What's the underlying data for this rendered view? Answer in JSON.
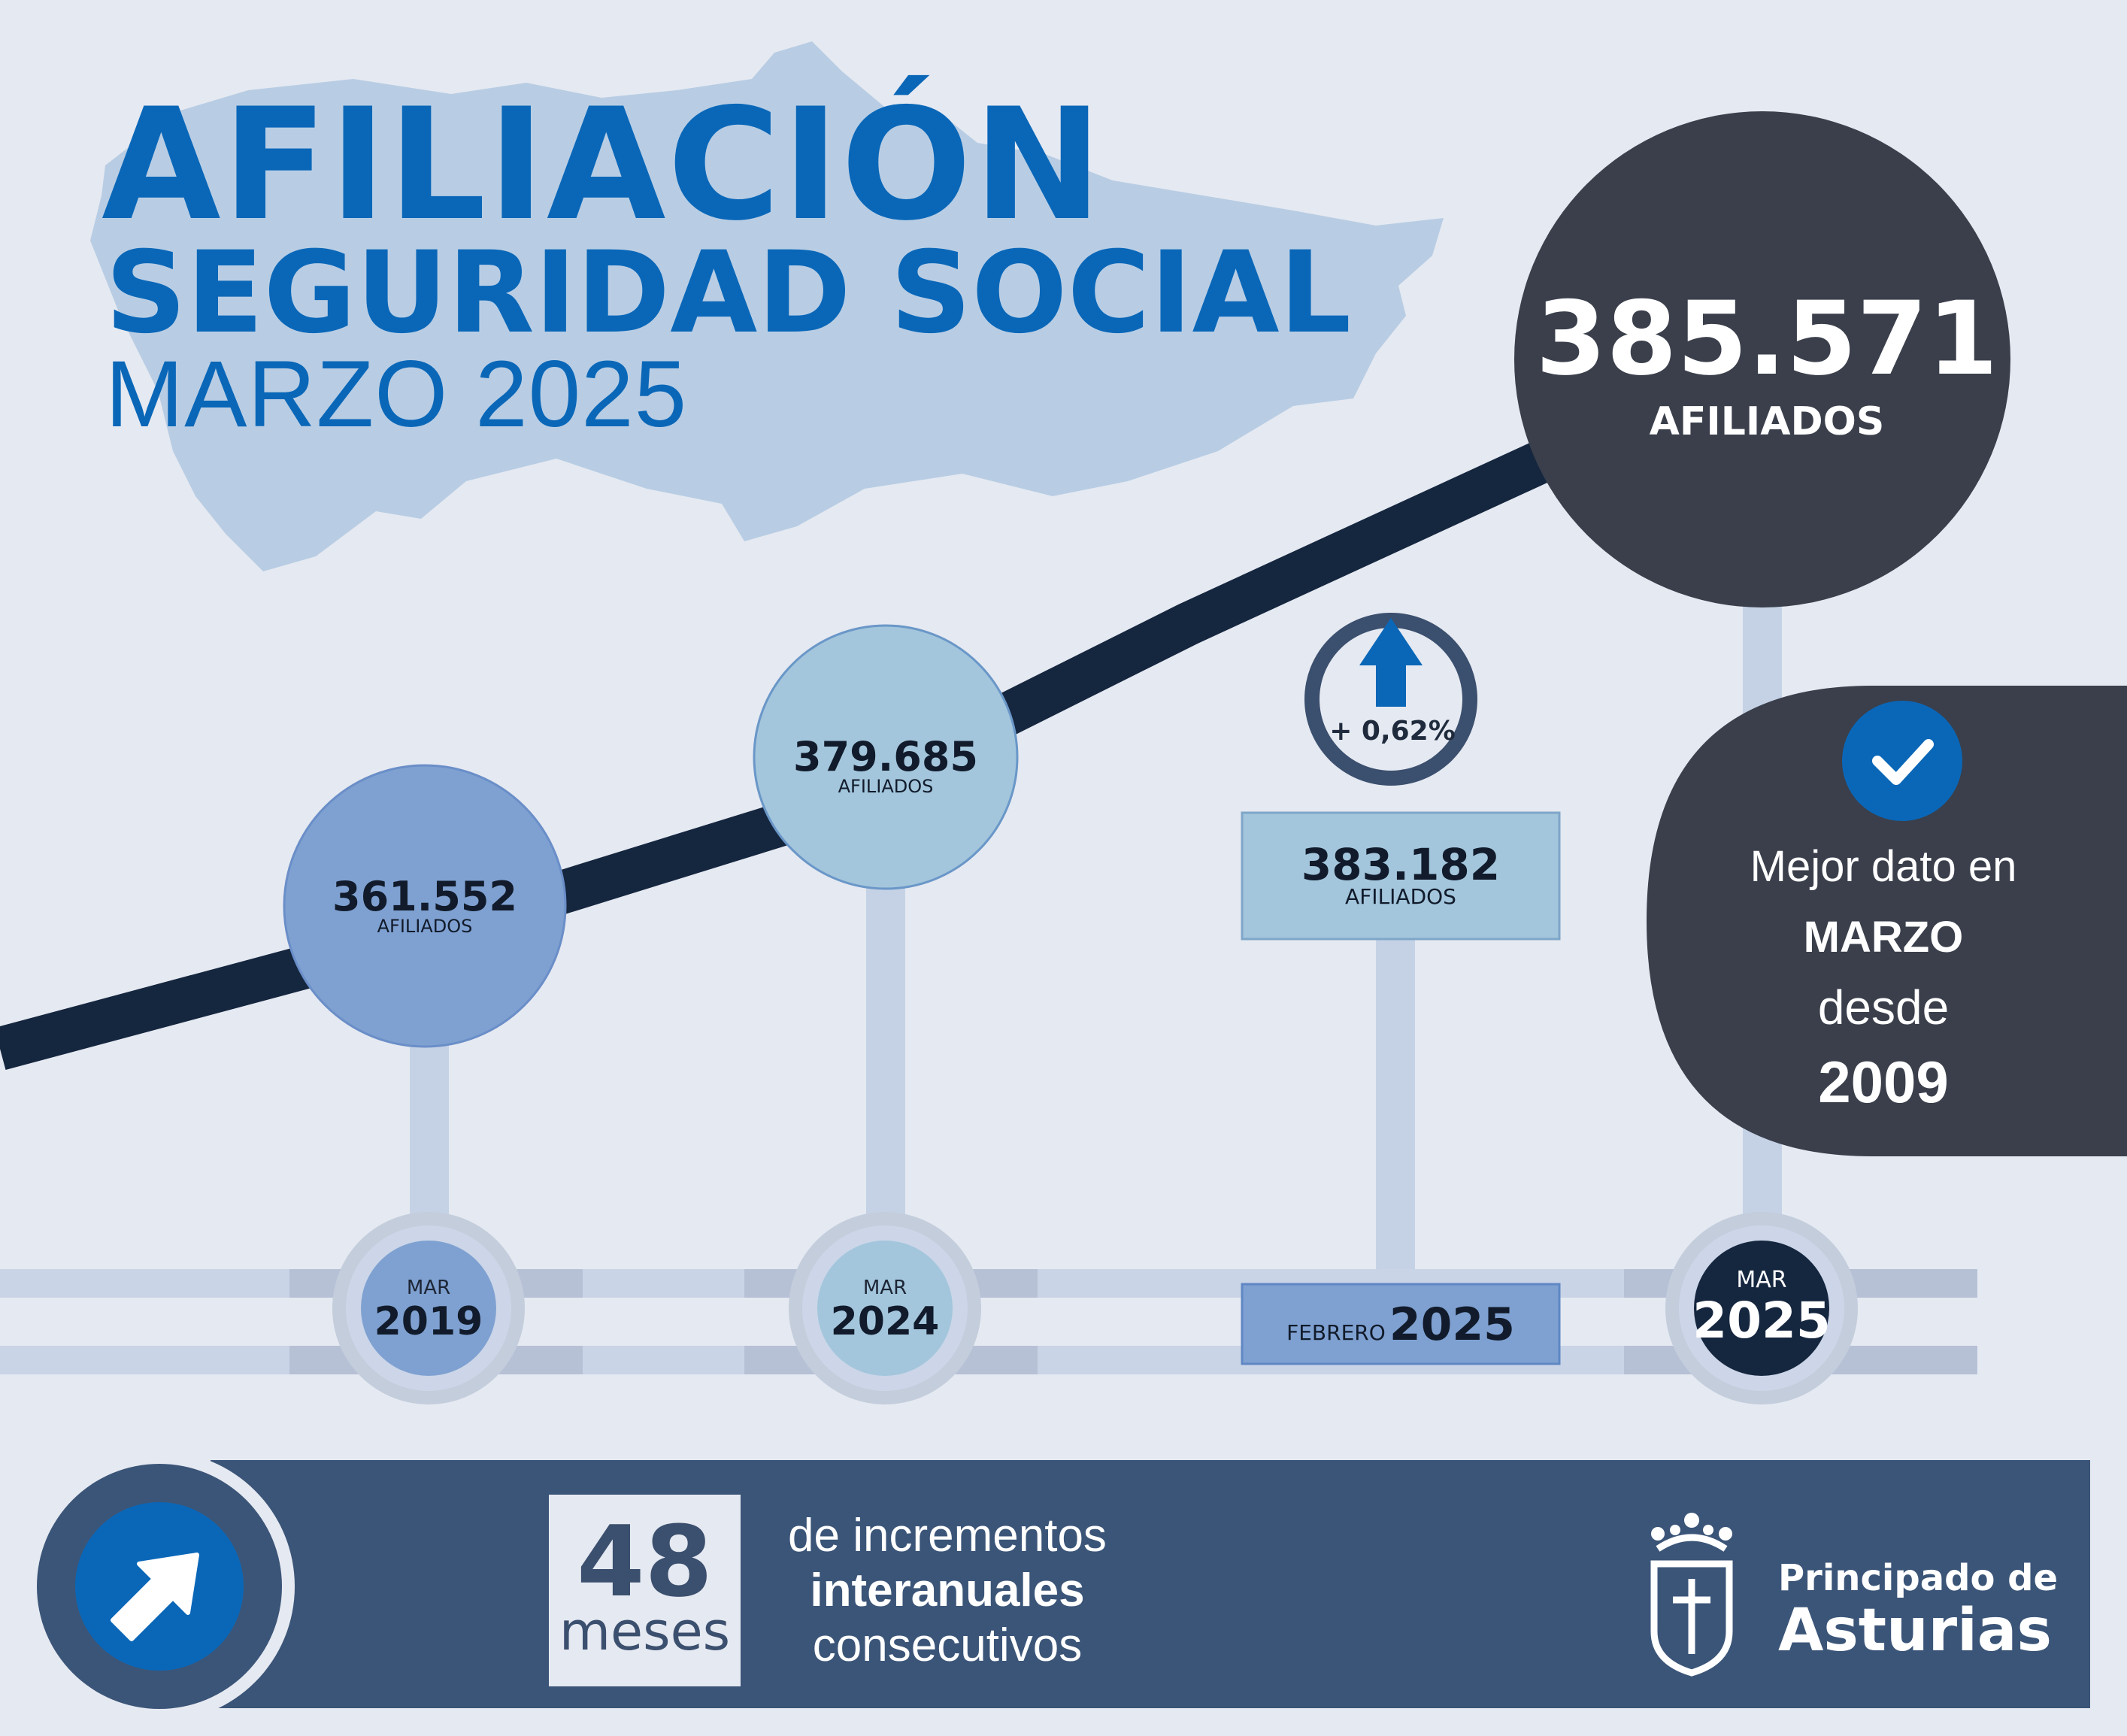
{
  "header": {
    "title_line1": "AFILIACIÓN",
    "title_line2": "SEGURIDAD SOCIAL",
    "title_line3": "MARZO 2025"
  },
  "timeline": [
    {
      "value": "361.552",
      "unit": "AFILIADOS",
      "month": "MAR",
      "year": "2019"
    },
    {
      "value": "379.685",
      "unit": "AFILIADOS",
      "month": "MAR",
      "year": "2024"
    },
    {
      "value": "383.182",
      "unit": "AFILIADOS",
      "month": "FEBRERO",
      "year": "2025"
    },
    {
      "value": "385.571",
      "unit": "AFILIADOS",
      "month": "MAR",
      "year": "2025"
    }
  ],
  "change": {
    "label": "+ 0,62%"
  },
  "best_data": {
    "line1": "Mejor dato en",
    "line2": "MARZO",
    "line3": "desde",
    "line4": "2009"
  },
  "footer": {
    "count": "48",
    "count_unit": "meses",
    "desc_line1": "de incrementos",
    "desc_line2": "interanuales",
    "desc_line3": "consecutivos",
    "org_line1": "Principado de",
    "org_line2": "Asturias"
  },
  "colors": {
    "brand_blue": "#0a67b8",
    "dark_slate": "#3a3f4b",
    "navy_line": "#15263f",
    "footer_bar": "#3b5578"
  }
}
